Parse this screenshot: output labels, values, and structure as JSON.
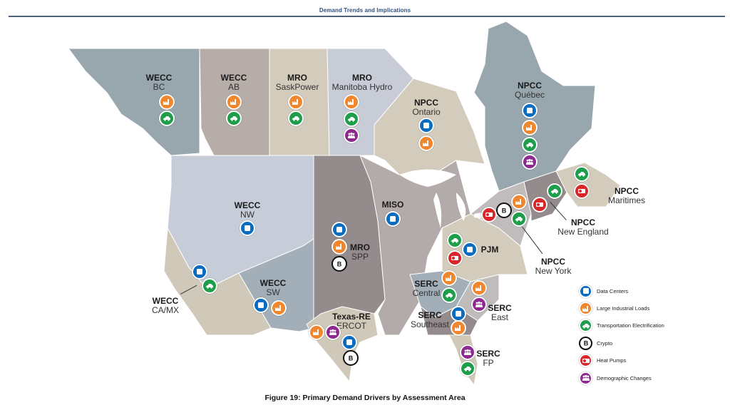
{
  "header": {
    "title": "Demand Trends and Implications"
  },
  "caption": "Figure 19: Primary Demand Drivers by Assessment Area",
  "colors": {
    "data_centers": "#0a6cc0",
    "large_industrial_loads": "#f0862e",
    "transportation_electrification": "#1e9e4a",
    "crypto": "#111111",
    "heat_pumps": "#d9262b",
    "demographic_changes": "#8e2a8f"
  },
  "legend": [
    {
      "key": "dc",
      "label": "Data Centers",
      "icon": "data-center-icon"
    },
    {
      "key": "ind",
      "label": "Large Industrial Loads",
      "icon": "factory-icon"
    },
    {
      "key": "ev",
      "label": "Transportation Electrification",
      "icon": "electric-car-icon"
    },
    {
      "key": "btc",
      "label": "Crypto",
      "icon": "bitcoin-icon"
    },
    {
      "key": "hp",
      "label": "Heat Pumps",
      "icon": "heat-pump-icon"
    },
    {
      "key": "demo",
      "label": "Demographic Changes",
      "icon": "people-group-icon"
    }
  ],
  "regions": [
    {
      "l1": "WECC",
      "l2": "BC",
      "drivers": [
        "Large Industrial Loads",
        "Transportation Electrification"
      ]
    },
    {
      "l1": "WECC",
      "l2": "AB",
      "drivers": [
        "Large Industrial Loads",
        "Transportation Electrification"
      ]
    },
    {
      "l1": "MRO",
      "l2": "SaskPower",
      "drivers": [
        "Large Industrial Loads",
        "Transportation Electrification"
      ]
    },
    {
      "l1": "MRO",
      "l2": "Manitoba Hydro",
      "drivers": [
        "Large Industrial Loads",
        "Transportation Electrification",
        "Demographic Changes"
      ]
    },
    {
      "l1": "NPCC",
      "l2": "Ontario",
      "drivers": [
        "Data Centers",
        "Large Industrial Loads"
      ]
    },
    {
      "l1": "NPCC",
      "l2": "Québec",
      "drivers": [
        "Data Centers",
        "Large Industrial Loads",
        "Transportation Electrification",
        "Demographic Changes"
      ]
    },
    {
      "l1": "NPCC",
      "l2": "Maritimes",
      "drivers": [
        "Transportation Electrification",
        "Heat Pumps"
      ]
    },
    {
      "l1": "NPCC",
      "l2": "New England",
      "drivers": [
        "Transportation Electrification",
        "Heat Pumps"
      ]
    },
    {
      "l1": "NPCC",
      "l2": "New York",
      "drivers": [
        "Large Industrial Loads",
        "Crypto",
        "Transportation Electrification",
        "Heat Pumps"
      ]
    },
    {
      "l1": "WECC",
      "l2": "NW",
      "drivers": [
        "Data Centers"
      ]
    },
    {
      "l1": "MISO",
      "l2": "",
      "drivers": [
        "Data Centers"
      ]
    },
    {
      "l1": "MRO",
      "l2": "SPP",
      "drivers": [
        "Data Centers",
        "Large Industrial Loads",
        "Crypto"
      ]
    },
    {
      "l1": "PJM",
      "l2": "",
      "drivers": [
        "Transportation Electrification",
        "Data Centers",
        "Heat Pumps"
      ]
    },
    {
      "l1": "WECC",
      "l2": "CA/MX",
      "drivers": [
        "Data Centers",
        "Transportation Electrification"
      ]
    },
    {
      "l1": "WECC",
      "l2": "SW",
      "drivers": [
        "Data Centers",
        "Large Industrial Loads"
      ]
    },
    {
      "l1": "SERC",
      "l2": "Central",
      "drivers": [
        "Large Industrial Loads",
        "Transportation Electrification"
      ]
    },
    {
      "l1": "SERC",
      "l2": "East",
      "drivers": [
        "Large Industrial Loads",
        "Demographic Changes"
      ]
    },
    {
      "l1": "SERC",
      "l2": "Southeast",
      "drivers": [
        "Data Centers",
        "Large Industrial Loads"
      ]
    },
    {
      "l1": "Texas-RE",
      "l2": "ERCOT",
      "drivers": [
        "Large Industrial Loads",
        "Demographic Changes",
        "Data Centers",
        "Crypto"
      ]
    },
    {
      "l1": "SERC",
      "l2": "FP",
      "drivers": [
        "Demographic Changes",
        "Transportation Electrification"
      ]
    }
  ]
}
